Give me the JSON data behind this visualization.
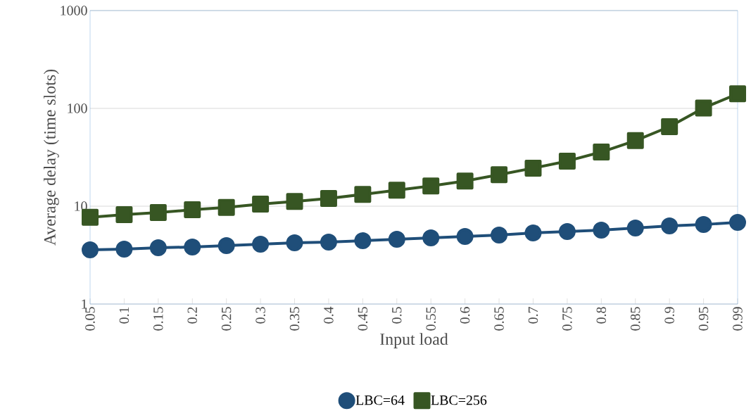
{
  "chart_data": {
    "type": "line",
    "xlabel": "Input load",
    "ylabel": "Average delay (time slots)",
    "categories": [
      "0.05",
      "0.1",
      "0.15",
      "0.2",
      "0.25",
      "0.3",
      "0.35",
      "0.4",
      "0.45",
      "0.5",
      "0.55",
      "0.6",
      "0.65",
      "0.7",
      "0.75",
      "0.8",
      "0.85",
      "0.9",
      "0.95",
      "0.99"
    ],
    "series": [
      {
        "name": "LBC=64",
        "color": "#1f4e79",
        "marker": "circle",
        "values": [
          3.58,
          3.64,
          3.76,
          3.83,
          3.96,
          4.09,
          4.23,
          4.3,
          4.44,
          4.59,
          4.74,
          4.9,
          5.07,
          5.33,
          5.51,
          5.69,
          5.98,
          6.28,
          6.5,
          6.83
        ]
      },
      {
        "name": "LBC=256",
        "color": "#375623",
        "marker": "square",
        "values": [
          7.7,
          8.2,
          8.6,
          9.2,
          9.7,
          10.5,
          11.2,
          12,
          13.2,
          14.6,
          16.1,
          18.1,
          21,
          24.5,
          28.9,
          35.8,
          46.8,
          65,
          101,
          141
        ]
      }
    ],
    "log": "y",
    "ylim": [
      1,
      1000
    ],
    "yticks": [
      1,
      10,
      100,
      1000
    ],
    "grid": "y",
    "legend": "bottom",
    "line_style": "solid"
  }
}
